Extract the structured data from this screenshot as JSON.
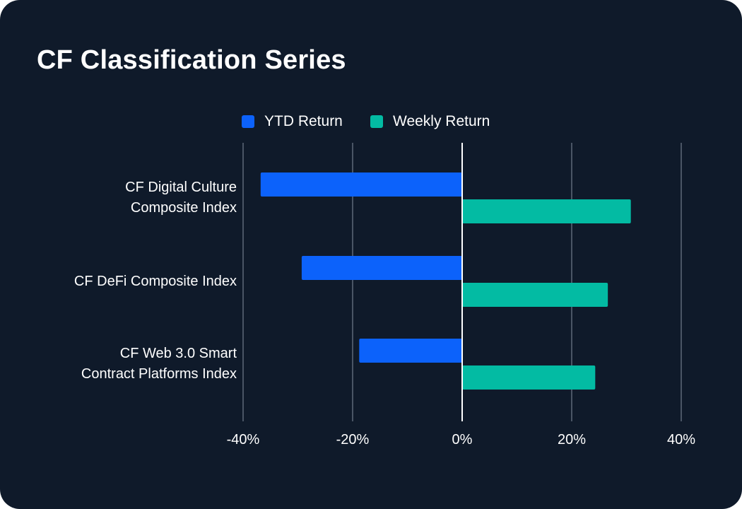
{
  "title": "CF Classification Series",
  "colors": {
    "background": "#0f1a2a",
    "ytd": "#0c62fb",
    "weekly": "#03bba3",
    "grid": "#4a5565",
    "zero_line": "#ffffff",
    "text": "#ffffff"
  },
  "legend": {
    "ytd_label": "YTD Return",
    "weekly_label": "Weekly Return"
  },
  "chart_data": {
    "type": "bar",
    "orientation": "horizontal",
    "title": "CF Classification Series",
    "categories": [
      [
        "CF Digital Culture",
        "Composite Index"
      ],
      [
        "CF DeFi Composite Index"
      ],
      [
        "CF Web 3.0 Smart",
        "Contract Platforms Index"
      ]
    ],
    "series": [
      {
        "name": "YTD Return",
        "values": [
          -36.8,
          -29.3,
          -18.8
        ]
      },
      {
        "name": "Weekly Return",
        "values": [
          30.8,
          26.6,
          24.3
        ]
      }
    ],
    "xlim": [
      -40,
      40
    ],
    "xticks": [
      -40,
      -20,
      0,
      20,
      40
    ],
    "xtick_labels": [
      "-40%",
      "-20%",
      "0%",
      "20%",
      "40%"
    ],
    "xlabel": "",
    "ylabel": "",
    "grid": true,
    "legend_position": "top-center"
  }
}
